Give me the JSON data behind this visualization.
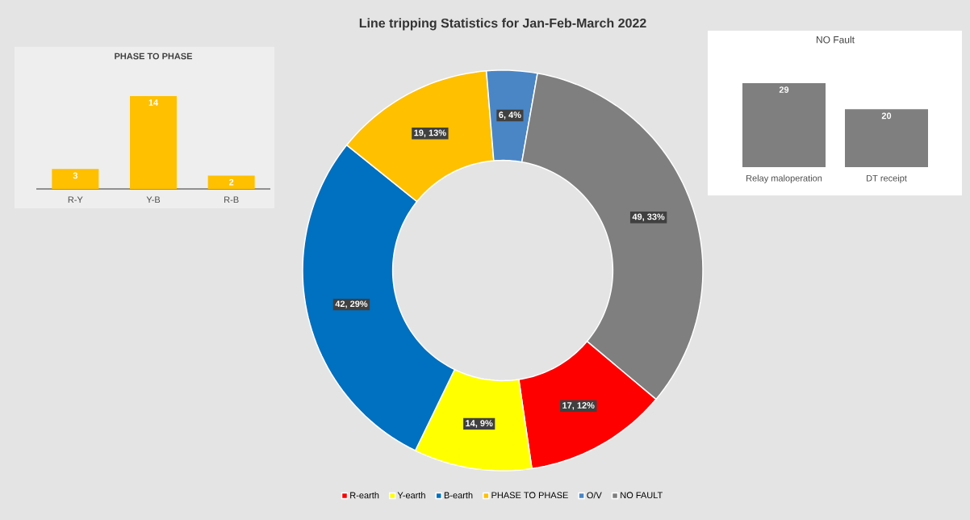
{
  "chart_data": [
    {
      "type": "donut",
      "title": "Line tripping Statistics for Jan-Feb-March 2022",
      "categories": [
        "R-earth",
        "Y-earth",
        "B-earth",
        "PHASE TO PHASE",
        "O/V",
        "NO FAULT"
      ],
      "values": [
        17,
        14,
        42,
        19,
        6,
        49
      ],
      "colors": [
        "#ff0000",
        "#ffff00",
        "#0070c0",
        "#ffc000",
        "#4a86c6",
        "#7f7f7f"
      ],
      "value_labels": [
        "17, 12%",
        "14, 9%",
        "42, 29%",
        "19, 13%",
        "6, 4%",
        "49, 33%"
      ],
      "legend": "bottom"
    },
    {
      "type": "bar",
      "title": "PHASE TO PHASE",
      "categories": [
        "R-Y",
        "Y-B",
        "R-B"
      ],
      "values": [
        3,
        14,
        2
      ],
      "color": "#ffc000",
      "data_labels": true
    },
    {
      "type": "bar",
      "title": "NO Fault",
      "categories": [
        "Relay maloperation",
        "DT receipt"
      ],
      "values": [
        29,
        20
      ],
      "color": "#7f7f7f",
      "data_labels": true
    }
  ]
}
